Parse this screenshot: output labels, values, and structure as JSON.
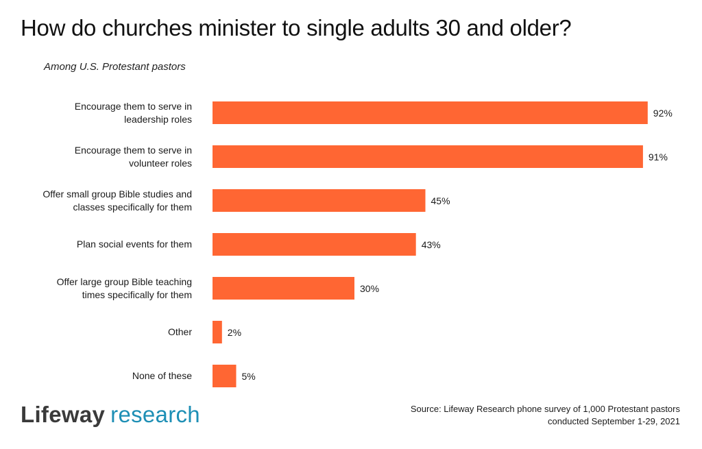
{
  "title": "How do churches minister to single adults 30 and older?",
  "subtitle": "Among U.S. Protestant pastors",
  "colors": {
    "bar": "#FF6633",
    "logo_research": "#1E8FB5",
    "logo_brand": "#3A3A3A"
  },
  "logo": {
    "brand": "Lifeway",
    "product": "research"
  },
  "source": {
    "line1": "Source: Lifeway Research phone survey of 1,000 Protestant pastors",
    "line2": "conducted September 1-29, 2021"
  },
  "chart_data": {
    "type": "bar",
    "orientation": "horizontal",
    "title": "How do churches minister to single adults 30 and older?",
    "subtitle": "Among U.S. Protestant pastors",
    "xlim": [
      0,
      100
    ],
    "grid": false,
    "categories": [
      [
        "Encourage them to serve in",
        "leadership roles"
      ],
      [
        "Encourage them to serve in",
        "volunteer roles"
      ],
      [
        "Offer small group Bible studies and",
        "classes specifically for them"
      ],
      [
        "Plan social events for them"
      ],
      [
        "Offer large group Bible teaching",
        "times specifically for them"
      ],
      [
        "Other"
      ],
      [
        "None of these"
      ]
    ],
    "values": [
      92,
      91,
      45,
      43,
      30,
      2,
      5
    ],
    "value_labels": [
      "92%",
      "91%",
      "45%",
      "43%",
      "30%",
      "2%",
      "5%"
    ]
  }
}
